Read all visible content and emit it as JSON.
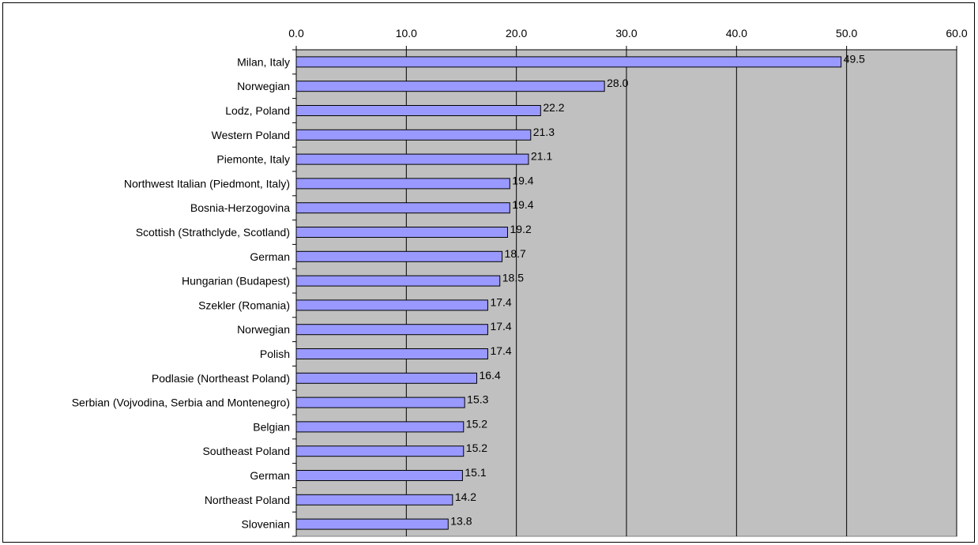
{
  "chart_data": {
    "type": "bar",
    "orientation": "horizontal",
    "title": "",
    "xlabel": "",
    "ylabel": "",
    "xlim": [
      0,
      60
    ],
    "x_ticks": [
      "0.0",
      "10.0",
      "20.0",
      "30.0",
      "40.0",
      "50.0",
      "60.0"
    ],
    "axis_position": "top",
    "grid": "vertical",
    "plot_background": "#c0c0c0",
    "bar_color": "#9999ff",
    "categories": [
      "Milan, Italy",
      "Norwegian",
      "Lodz, Poland",
      "Western Poland",
      "Piemonte, Italy",
      "Northwest Italian (Piedmont, Italy)",
      "Bosnia-Herzogovina",
      "Scottish (Strathclyde, Scotland)",
      "German",
      "Hungarian (Budapest)",
      "Szekler (Romania)",
      "Norwegian",
      "Polish",
      "Podlasie (Northeast Poland)",
      "Serbian (Vojvodina, Serbia and Montenegro)",
      "Belgian",
      "Southeast Poland",
      "German",
      "Northeast Poland",
      "Slovenian"
    ],
    "values": [
      49.5,
      28.0,
      22.2,
      21.3,
      21.1,
      19.4,
      19.4,
      19.2,
      18.7,
      18.5,
      17.4,
      17.4,
      17.4,
      16.4,
      15.3,
      15.2,
      15.2,
      15.1,
      14.2,
      13.8
    ],
    "value_labels": [
      "49.5",
      "28.0",
      "22.2",
      "21.3",
      "21.1",
      "19.4",
      "19.4",
      "19.2",
      "18.7",
      "18.5",
      "17.4",
      "17.4",
      "17.4",
      "16.4",
      "15.3",
      "15.2",
      "15.2",
      "15.1",
      "14.2",
      "13.8"
    ]
  }
}
